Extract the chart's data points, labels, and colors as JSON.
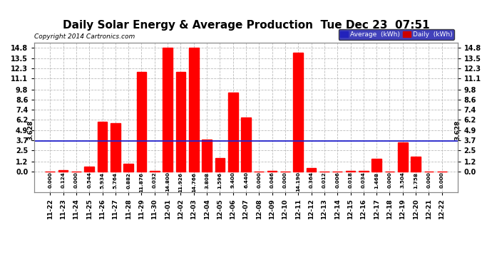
{
  "title": "Daily Solar Energy & Average Production  Tue Dec 23  07:51",
  "copyright": "Copyright 2014 Cartronics.com",
  "categories": [
    "11-22",
    "11-23",
    "11-24",
    "11-25",
    "11-26",
    "11-27",
    "11-28",
    "11-29",
    "11-30",
    "12-01",
    "12-02",
    "12-03",
    "12-04",
    "12-05",
    "12-06",
    "12-07",
    "12-08",
    "12-09",
    "12-10",
    "12-11",
    "12-12",
    "12-13",
    "12-14",
    "12-15",
    "12-16",
    "12-17",
    "12-18",
    "12-19",
    "12-20",
    "12-21",
    "12-22"
  ],
  "values": [
    0.0,
    0.124,
    0.0,
    0.544,
    5.934,
    5.764,
    0.882,
    11.876,
    0.032,
    14.8,
    11.926,
    14.766,
    3.808,
    1.596,
    9.4,
    6.44,
    0.0,
    0.046,
    0.0,
    14.19,
    0.364,
    0.012,
    0.006,
    0.018,
    0.034,
    1.468,
    0.0,
    3.504,
    1.758,
    0.0,
    0.0
  ],
  "bar_color": "#FF0000",
  "average_value": 3.628,
  "average_color": "#2222CC",
  "bg_color": "#FFFFFF",
  "grid_color": "#BBBBBB",
  "title_fontsize": 11,
  "yticks": [
    0.0,
    1.2,
    2.5,
    3.7,
    4.9,
    6.2,
    7.4,
    8.6,
    9.8,
    11.1,
    12.3,
    13.5,
    14.8
  ],
  "ymax": 15.4,
  "ymin": -2.5,
  "legend_avg_color": "#2222BB",
  "legend_daily_color": "#CC0000",
  "legend_avg_label": "Average  (kWh)",
  "legend_daily_label": "Daily  (kWh)"
}
